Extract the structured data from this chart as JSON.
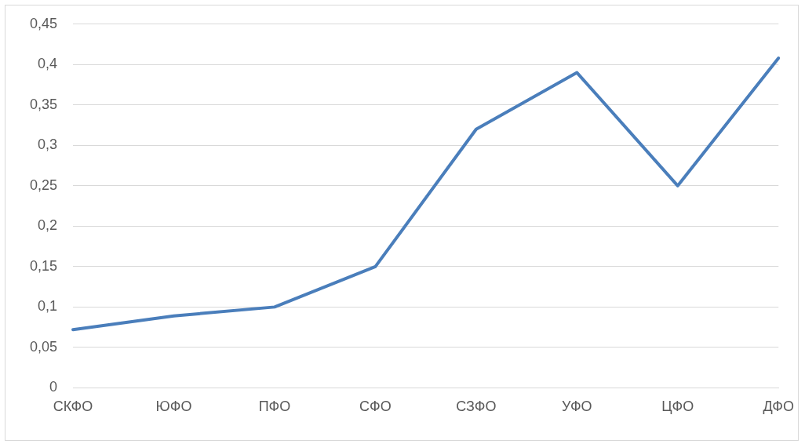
{
  "chart_data": {
    "type": "line",
    "categories": [
      "СКФО",
      "ЮФО",
      "ПФО",
      "СФО",
      "СЗФО",
      "УФО",
      "ЦФО",
      "ДФО"
    ],
    "series": [
      {
        "color": "#4a7ebb",
        "values": [
          0.072,
          0.089,
          0.1,
          0.15,
          0.32,
          0.39,
          0.25,
          0.408
        ]
      }
    ],
    "ylim": [
      0,
      0.45
    ],
    "yticks": [
      {
        "value": 0,
        "label": "0"
      },
      {
        "value": 0.05,
        "label": "0,05"
      },
      {
        "value": 0.1,
        "label": "0,1"
      },
      {
        "value": 0.15,
        "label": "0,15"
      },
      {
        "value": 0.2,
        "label": "0,2"
      },
      {
        "value": 0.25,
        "label": "0,25"
      },
      {
        "value": 0.3,
        "label": "0,3"
      },
      {
        "value": 0.35,
        "label": "0,35"
      },
      {
        "value": 0.4,
        "label": "0,4"
      },
      {
        "value": 0.45,
        "label": "0,45"
      }
    ],
    "grid": "y",
    "legend": false,
    "marker": "none",
    "line_style": "solid"
  }
}
